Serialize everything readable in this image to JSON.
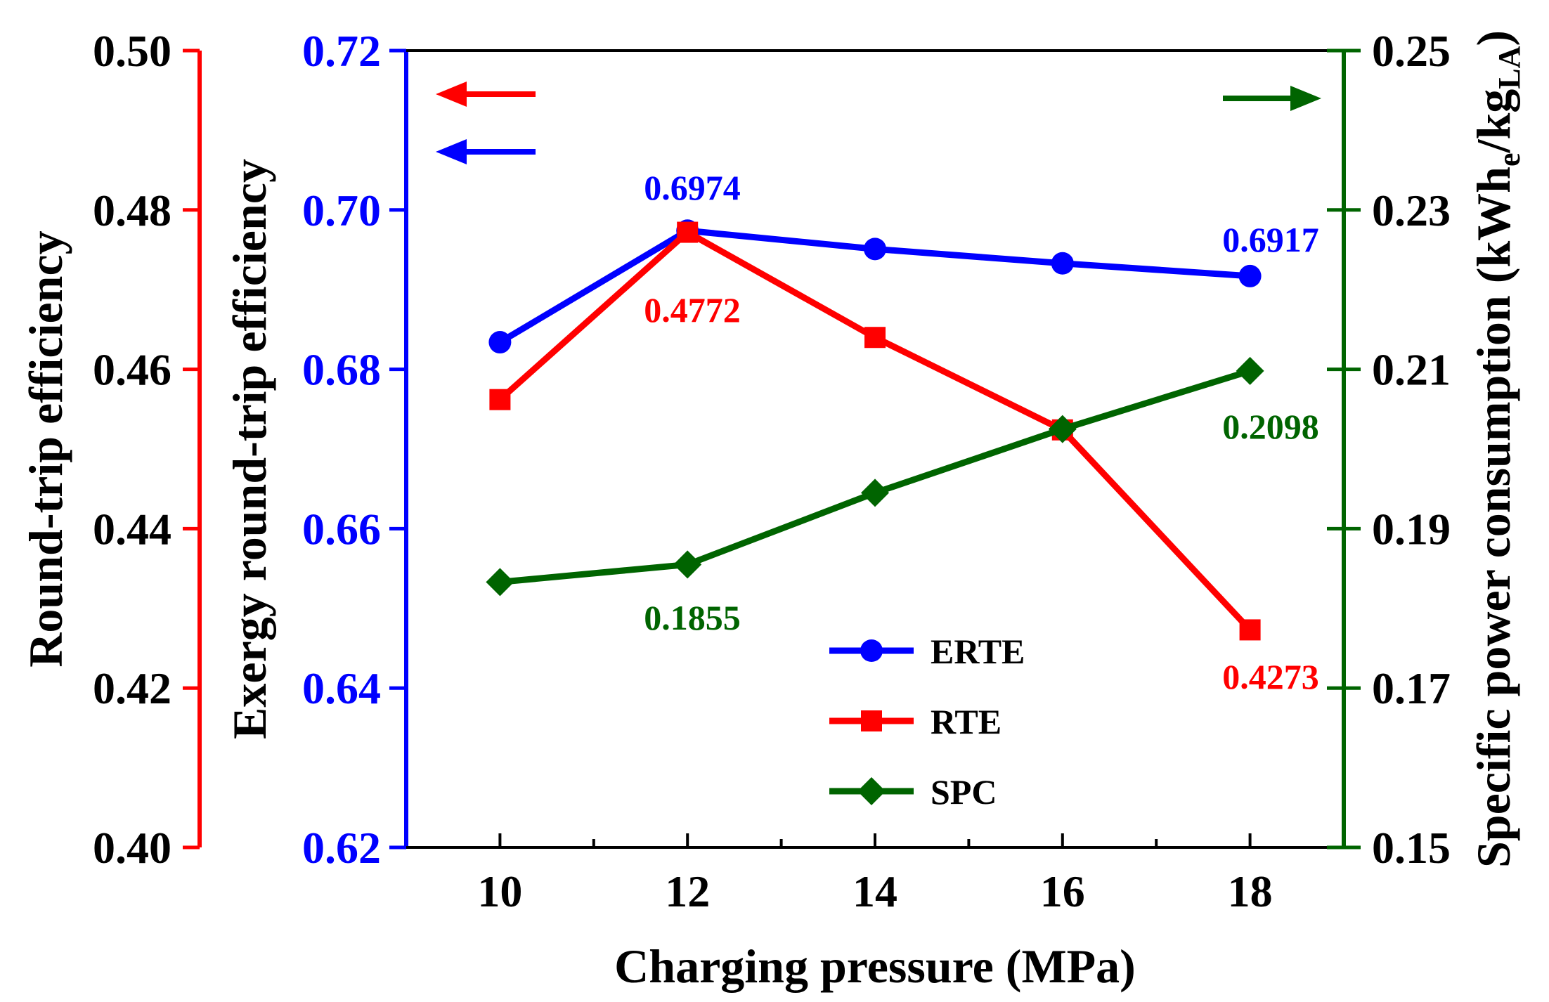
{
  "chart_data": {
    "type": "line",
    "x": [
      10,
      12,
      14,
      16,
      18
    ],
    "xlabel": "Charging pressure (MPa)",
    "xticks": [
      "10",
      "12",
      "14",
      "16",
      "18"
    ],
    "xlim": [
      9,
      19
    ],
    "axes": {
      "rte": {
        "label": "Round-trip efficiency",
        "color": "#ff0000",
        "ylim": [
          0.4,
          0.5
        ],
        "ticks": [
          "0.40",
          "0.42",
          "0.44",
          "0.46",
          "0.48",
          "0.50"
        ]
      },
      "erte": {
        "label": "Exergy round-trip efficiency",
        "color": "#0000ff",
        "ylim": [
          0.62,
          0.72
        ],
        "ticks": [
          "0.62",
          "0.64",
          "0.66",
          "0.68",
          "0.70",
          "0.72"
        ]
      },
      "spc": {
        "label_main": "Specific power consumption (kWh",
        "label_sub1": "e",
        "label_mid": "/kg",
        "label_sub2": "LA",
        "label_end": ")",
        "color": "#006400",
        "ylim": [
          0.15,
          0.25
        ],
        "ticks": [
          "0.15",
          "0.17",
          "0.19",
          "0.21",
          "0.23",
          "0.25"
        ]
      }
    },
    "series": [
      {
        "name": "ERTE",
        "axis": "erte",
        "marker": "circle",
        "color": "#0000ff",
        "values": [
          0.6834,
          0.6974,
          0.6951,
          0.6933,
          0.6917
        ]
      },
      {
        "name": "RTE",
        "axis": "rte",
        "marker": "square",
        "color": "#ff0000",
        "values": [
          0.4562,
          0.4772,
          0.464,
          0.4524,
          0.4273
        ]
      },
      {
        "name": "SPC",
        "axis": "spc",
        "marker": "diamond",
        "color": "#006400",
        "values": [
          0.1833,
          0.1855,
          0.1945,
          0.2025,
          0.2098
        ]
      }
    ],
    "annotations": [
      {
        "text": "0.6974",
        "color": "#0000ff"
      },
      {
        "text": "0.6917",
        "color": "#0000ff"
      },
      {
        "text": "0.4772",
        "color": "#ff0000"
      },
      {
        "text": "0.4273",
        "color": "#ff0000"
      },
      {
        "text": "0.1855",
        "color": "#006400"
      },
      {
        "text": "0.2098",
        "color": "#006400"
      }
    ],
    "legend": [
      "ERTE",
      "RTE",
      "SPC"
    ],
    "legend_position": "bottom-center"
  }
}
